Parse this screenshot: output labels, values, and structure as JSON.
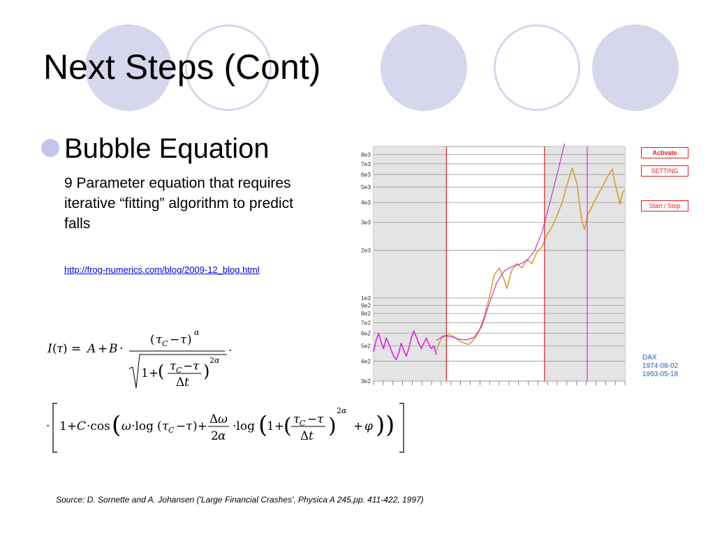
{
  "title": "Next Steps (Cont)",
  "bullet": {
    "heading": "Bubble Equation",
    "description": "9 Parameter equation that requires iterative “fitting” algorithm to predict falls",
    "link": "http://frog-numerics.com/blog/2009-12_blog.html"
  },
  "app": {
    "buttons": {
      "activate": "Activate",
      "setting": "SETTING",
      "start_stop": "Start / Stop"
    },
    "legend": {
      "index": "DAX",
      "start_date": "1974-08-02",
      "end_date": "1993-05-18"
    }
  },
  "source": "Source: D. Sornette and A. Johansen ('Large Financial Crashes', Physica A 245,pp. 411-422, 1997)",
  "colors": {
    "decor_circle": "#d6d6ec",
    "bullet": "#c4c4ee",
    "price_early": "#e020e0",
    "price_late": "#d4a030",
    "fit_curve": "#cc33cc",
    "event_line": "#e02020",
    "crash_line": "#cc33cc",
    "shade": "#e4e4e4",
    "button": "#e02020",
    "legend_text": "#1f5fbf"
  },
  "chart_data": {
    "type": "line",
    "yscale": "log",
    "ylim": [
      300,
      9000
    ],
    "ytick_labels": [
      "8e3",
      "7e3",
      "6e3",
      "5e3",
      "4e3",
      "3e3",
      "2e3",
      "1e3",
      "9e2",
      "8e2",
      "7e2",
      "6e2",
      "5e2",
      "4e2",
      "3e2"
    ],
    "ytick_values": [
      8000,
      7000,
      6000,
      5000,
      4000,
      3000,
      2000,
      1000,
      900,
      800,
      700,
      600,
      500,
      400,
      300
    ],
    "grid": true,
    "series": [
      {
        "key": "price_early",
        "values": [
          [
            0.0,
            460
          ],
          [
            0.01,
            540
          ],
          [
            0.02,
            600
          ],
          [
            0.03,
            530
          ],
          [
            0.04,
            480
          ],
          [
            0.05,
            560
          ],
          [
            0.06,
            520
          ],
          [
            0.07,
            470
          ],
          [
            0.08,
            430
          ],
          [
            0.09,
            410
          ],
          [
            0.1,
            450
          ],
          [
            0.11,
            520
          ],
          [
            0.12,
            470
          ],
          [
            0.13,
            430
          ],
          [
            0.14,
            480
          ],
          [
            0.15,
            560
          ],
          [
            0.16,
            620
          ],
          [
            0.17,
            570
          ],
          [
            0.18,
            520
          ],
          [
            0.19,
            480
          ],
          [
            0.2,
            520
          ],
          [
            0.21,
            560
          ],
          [
            0.22,
            510
          ],
          [
            0.23,
            480
          ],
          [
            0.24,
            500
          ],
          [
            0.245,
            470
          ],
          [
            0.25,
            440
          ]
        ]
      },
      {
        "key": "price_late",
        "values": [
          [
            0.25,
            470
          ],
          [
            0.27,
            560
          ],
          [
            0.3,
            590
          ],
          [
            0.32,
            570
          ],
          [
            0.34,
            540
          ],
          [
            0.36,
            520
          ],
          [
            0.38,
            510
          ],
          [
            0.4,
            550
          ],
          [
            0.42,
            620
          ],
          [
            0.44,
            760
          ],
          [
            0.46,
            1000
          ],
          [
            0.48,
            1400
          ],
          [
            0.5,
            1550
          ],
          [
            0.52,
            1300
          ],
          [
            0.53,
            1150
          ],
          [
            0.55,
            1500
          ],
          [
            0.57,
            1650
          ],
          [
            0.59,
            1550
          ],
          [
            0.61,
            1750
          ],
          [
            0.63,
            1650
          ],
          [
            0.65,
            1950
          ],
          [
            0.67,
            2100
          ],
          [
            0.69,
            2500
          ],
          [
            0.71,
            2800
          ],
          [
            0.73,
            3300
          ],
          [
            0.75,
            4000
          ],
          [
            0.77,
            5200
          ],
          [
            0.79,
            6600
          ],
          [
            0.81,
            5200
          ],
          [
            0.82,
            3800
          ],
          [
            0.83,
            3000
          ],
          [
            0.84,
            2700
          ],
          [
            0.85,
            3300
          ],
          [
            0.87,
            3800
          ],
          [
            0.89,
            4400
          ],
          [
            0.91,
            5000
          ],
          [
            0.93,
            5800
          ],
          [
            0.95,
            6500
          ],
          [
            0.96,
            5300
          ],
          [
            0.97,
            4600
          ],
          [
            0.98,
            3900
          ],
          [
            0.99,
            4600
          ],
          [
            1.0,
            4800
          ]
        ]
      },
      {
        "key": "fit_curve",
        "values": [
          [
            0.25,
            540
          ],
          [
            0.28,
            580
          ],
          [
            0.31,
            570
          ],
          [
            0.34,
            550
          ],
          [
            0.37,
            545
          ],
          [
            0.4,
            565
          ],
          [
            0.43,
            660
          ],
          [
            0.46,
            920
          ],
          [
            0.49,
            1250
          ],
          [
            0.52,
            1480
          ],
          [
            0.55,
            1580
          ],
          [
            0.58,
            1630
          ],
          [
            0.61,
            1720
          ],
          [
            0.64,
            1980
          ],
          [
            0.67,
            2600
          ],
          [
            0.7,
            3900
          ],
          [
            0.73,
            6000
          ],
          [
            0.76,
            9400
          ]
        ]
      }
    ],
    "vlines": [
      {
        "x": 0.29,
        "key": "event_line"
      },
      {
        "x": 0.68,
        "key": "event_line"
      },
      {
        "x": 0.85,
        "key": "crash_line"
      }
    ],
    "shaded_regions": [
      [
        0.0,
        0.29
      ],
      [
        0.68,
        1.0
      ]
    ]
  }
}
